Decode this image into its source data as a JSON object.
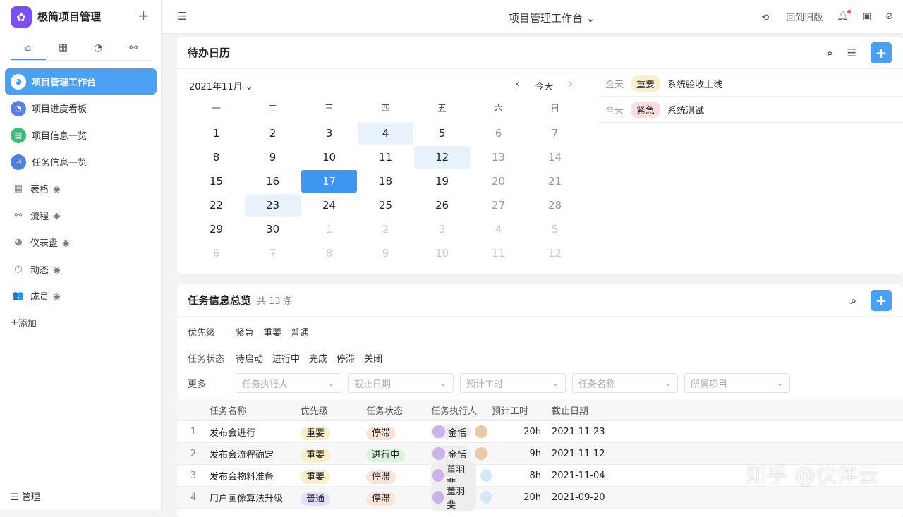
{
  "app": {
    "name": "极简项目管理",
    "logo_icon": "clover-icon"
  },
  "sidebar": {
    "tabs": [
      "⌂",
      "▦",
      "◔",
      "⚯"
    ],
    "items": [
      {
        "label": "项目管理工作台",
        "color": "#4aa0f2",
        "icon": "◕",
        "active": true
      },
      {
        "label": "项目进度看板",
        "color": "#5b7fe0",
        "icon": "◔"
      },
      {
        "label": "项目信息一览",
        "color": "#3dbb7a",
        "icon": "▤"
      },
      {
        "label": "任务信息一览",
        "color": "#4a7ee8",
        "icon": "☑"
      }
    ],
    "groups": [
      {
        "label": "表格",
        "icon": "▦"
      },
      {
        "label": "流程",
        "icon": "⚯"
      },
      {
        "label": "仪表盘",
        "icon": "◕"
      },
      {
        "label": "动态",
        "icon": "◷"
      },
      {
        "label": "成员",
        "icon": "👥"
      }
    ],
    "add": "添加",
    "manage": "管理"
  },
  "header": {
    "title": "项目管理工作台",
    "back_old": "回到旧版"
  },
  "calendar": {
    "title": "待办日历",
    "month": "2021年11月",
    "today": "今天",
    "weekdays": [
      "一",
      "二",
      "三",
      "四",
      "五",
      "六",
      "日"
    ],
    "weeks": [
      [
        "1",
        "2",
        "3",
        "4",
        "5",
        "6",
        "7"
      ],
      [
        "8",
        "9",
        "10",
        "11",
        "12",
        "13",
        "14"
      ],
      [
        "15",
        "16",
        "17",
        "18",
        "19",
        "20",
        "21"
      ],
      [
        "22",
        "23",
        "24",
        "25",
        "26",
        "27",
        "28"
      ],
      [
        "29",
        "30",
        "1",
        "2",
        "3",
        "4",
        "5"
      ],
      [
        "6",
        "7",
        "8",
        "9",
        "10",
        "11",
        "12"
      ]
    ],
    "selected": "17",
    "marked": [
      "4",
      "12",
      "23"
    ],
    "events": [
      {
        "time": "全天",
        "tag": "重要",
        "name": "系统验收上线"
      },
      {
        "time": "全天",
        "tag": "紧急",
        "name": "系统测试"
      }
    ]
  },
  "tasks": {
    "title": "任务信息总览",
    "count": "共 13 条",
    "filters": {
      "priority_label": "优先级",
      "priority": [
        "紧急",
        "重要",
        "普通"
      ],
      "status_label": "任务状态",
      "status": [
        "待启动",
        "进行中",
        "完成",
        "停滞",
        "关闭"
      ],
      "more_label": "更多",
      "dropdowns": [
        "任务执行人",
        "截止日期",
        "预计工时",
        "任务名称",
        "所属项目"
      ]
    },
    "columns": [
      "任务名称",
      "优先级",
      "任务状态",
      "任务执行人",
      "预计工时",
      "截止日期"
    ],
    "rows": [
      {
        "n": "1",
        "name": "发布会进行",
        "priority": "重要",
        "status": "停滞",
        "assignee": "金恬",
        "hours": "20h",
        "due": "2021-11-23"
      },
      {
        "n": "2",
        "name": "发布会流程确定",
        "priority": "重要",
        "status": "进行中",
        "assignee": "金恬",
        "hours": "9h",
        "due": "2021-11-12"
      },
      {
        "n": "3",
        "name": "发布会物料准备",
        "priority": "重要",
        "status": "停滞",
        "assignee": "董羽斐",
        "hours": "8h",
        "due": "2021-11-04"
      },
      {
        "n": "4",
        "name": "用户画像算法升级",
        "priority": "普通",
        "status": "停滞",
        "assignee": "董羽斐",
        "hours": "20h",
        "due": "2021-09-20"
      }
    ]
  },
  "watermark": "知乎 @伙伴云"
}
